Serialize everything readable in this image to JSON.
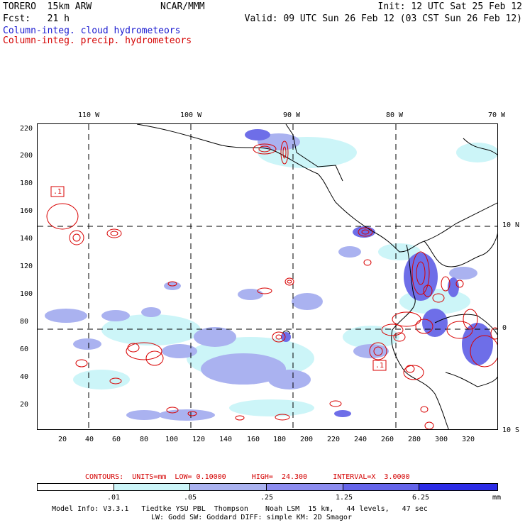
{
  "header": {
    "model": "TORERO  15km ARW",
    "org": "NCAR/MMM",
    "init": "Init: 12 UTC Sat 25 Feb 12",
    "fcst": "Fcst:   21 h",
    "valid": "Valid: 09 UTC Sun 26 Feb 12 (03 CST Sun 26 Feb 12)",
    "field1": "Column-integ. cloud hydrometeors",
    "field2": "Column-integ. precip. hydrometeors"
  },
  "map": {
    "lon_labels": [
      "110 W",
      "100 W",
      "90 W",
      "80 W",
      "70 W"
    ],
    "lat_labels": [
      "10 N",
      "0",
      "10 S"
    ],
    "y_ticks": [
      "220",
      "200",
      "180",
      "160",
      "140",
      "120",
      "100",
      "80",
      "60",
      "40",
      "20"
    ],
    "x_ticks": [
      "20",
      "40",
      "60",
      "80",
      "100",
      "120",
      "140",
      "160",
      "180",
      "200",
      "220",
      "240",
      "260",
      "280",
      "300",
      "320"
    ],
    "contour_labels": [
      ".1",
      ".1"
    ],
    "colors": {
      "cloud_light": "#ccf5f8",
      "cloud_mid": "#aab2f0",
      "cloud_dark": "#6e6ee8",
      "precip_contour": "#d80000",
      "coast": "#000000"
    }
  },
  "contours_text": "CONTOURS:  UNITS=mm  LOW= 0.10000      HIGH=  24.300      INTERVAL=X  3.0000",
  "legend": {
    "labels": [
      ".01",
      ".05",
      ".25",
      "1.25",
      "6.25"
    ],
    "unit": "mm",
    "colors": [
      "#ffffff",
      "#ccf5f8",
      "#aab2f0",
      "#8c8cf0",
      "#6464ea",
      "#2b2be6"
    ]
  },
  "footer": {
    "line1": "Model Info: V3.3.1   Tiedtke YSU PBL  Thompson    Noah LSM  15 km,   44 levels,   47 sec",
    "line2": "LW: Godd SW: Goddard DIFF: simple KM: 2D Smagor"
  }
}
